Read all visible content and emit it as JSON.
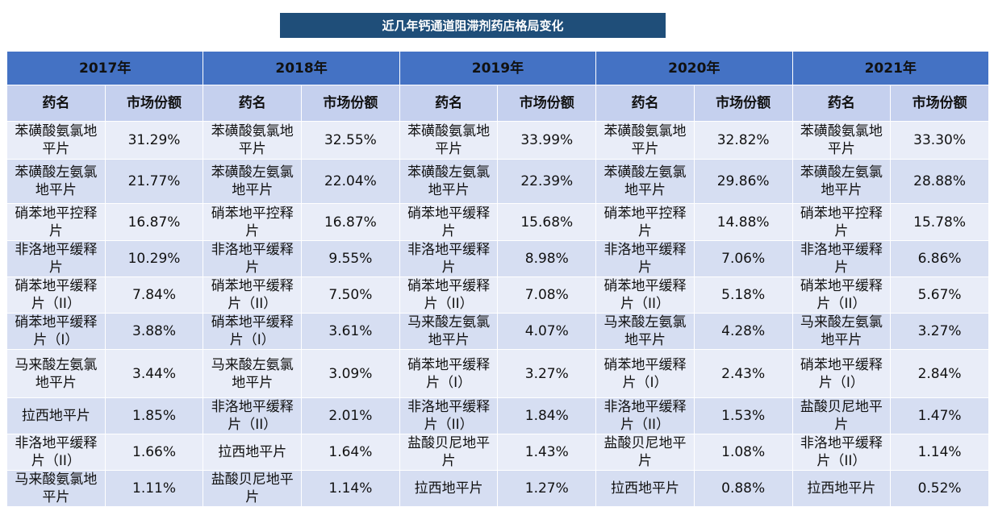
{
  "title": "近几年钙通道阻滞剂药店格局变化",
  "table": {
    "years": [
      "2017年",
      "2018年",
      "2019年",
      "2020年",
      "2021年"
    ],
    "column_headers": [
      "药名",
      "市场份额"
    ],
    "rows": [
      [
        "苯磺酸氨氯地平片",
        "31.29%",
        "苯磺酸氨氯地平片",
        "32.55%",
        "苯磺酸氨氯地平片",
        "33.99%",
        "苯磺酸氨氯地平片",
        "32.82%",
        "苯磺酸氨氯地平片",
        "33.30%"
      ],
      [
        "苯磺酸左氨氯地平片",
        "21.77%",
        "苯磺酸左氨氯地平片",
        "22.04%",
        "苯磺酸左氨氯地平片",
        "22.39%",
        "苯磺酸左氨氯地平片",
        "29.86%",
        "苯磺酸左氨氯地平片",
        "28.88%"
      ],
      [
        "硝苯地平控释片",
        "16.87%",
        "硝苯地平控释片",
        "16.87%",
        "硝苯地平缓释片",
        "15.68%",
        "硝苯地平控释片",
        "14.88%",
        "硝苯地平控释片",
        "15.78%"
      ],
      [
        "非洛地平缓释片",
        "10.29%",
        "非洛地平缓释片",
        "9.55%",
        "非洛地平缓释片",
        "8.98%",
        "非洛地平缓释片",
        "7.06%",
        "非洛地平缓释片",
        "6.86%"
      ],
      [
        "硝苯地平缓释片（II）",
        "7.84%",
        "硝苯地平缓释片（II）",
        "7.50%",
        "硝苯地平缓释片（II）",
        "7.08%",
        "硝苯地平缓释片（II）",
        "5.18%",
        "硝苯地平缓释片（II）",
        "5.67%"
      ],
      [
        "硝苯地平缓释片（I）",
        "3.88%",
        "硝苯地平缓释片（I）",
        "3.61%",
        "马来酸左氨氯地平片",
        "4.07%",
        "马来酸左氨氯地平片",
        "4.28%",
        "马来酸左氨氯地平片",
        "3.27%"
      ],
      [
        "马来酸左氨氯地平片",
        "3.44%",
        "马来酸左氨氯地平片",
        "3.09%",
        "硝苯地平缓释片（I）",
        "3.27%",
        "硝苯地平缓释片（I）",
        "2.43%",
        "硝苯地平缓释片（I）",
        "2.84%"
      ],
      [
        "拉西地平片",
        "1.85%",
        "非洛地平缓释片（II）",
        "2.01%",
        "非洛地平缓释片（II）",
        "1.84%",
        "非洛地平缓释片（II）",
        "1.53%",
        "盐酸贝尼地平片",
        "1.47%"
      ],
      [
        "非洛地平缓释片（II）",
        "1.66%",
        "拉西地平片",
        "1.64%",
        "盐酸贝尼地平片",
        "1.43%",
        "盐酸贝尼地平片",
        "1.08%",
        "非洛地平缓释片（II）",
        "1.14%"
      ],
      [
        "马来酸氨氯地平片",
        "1.11%",
        "盐酸贝尼地平片",
        "1.14%",
        "拉西地平片",
        "1.27%",
        "拉西地平片",
        "0.88%",
        "拉西地平片",
        "0.52%"
      ]
    ]
  }
}
